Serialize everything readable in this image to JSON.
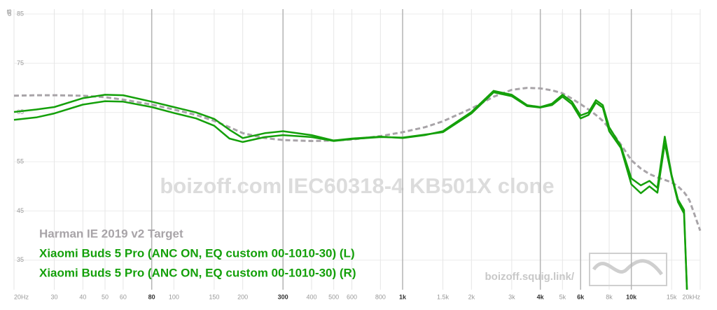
{
  "chart_data": {
    "type": "line",
    "watermark": "boizoff.com IEC60318-4 KB501X clone",
    "site": "boizoff.squig.link/",
    "ylabel": "dB",
    "xscale": "log",
    "grid": true,
    "legend": "bottom-left",
    "xlim": [
      20,
      20000
    ],
    "ylim": [
      29,
      86
    ],
    "xticks": [
      {
        "value": 20,
        "label": "20Hz"
      },
      30,
      40,
      50,
      60,
      80,
      100,
      150,
      200,
      300,
      400,
      500,
      600,
      800,
      {
        "value": 1000,
        "label": "1k"
      },
      {
        "value": 1500,
        "label": "1.5k"
      },
      {
        "value": 2000,
        "label": "2k"
      },
      {
        "value": 3000,
        "label": "3k"
      },
      {
        "value": 4000,
        "label": "4k"
      },
      {
        "value": 5000,
        "label": "5k"
      },
      {
        "value": 6000,
        "label": "6k"
      },
      {
        "value": 8000,
        "label": "8k"
      },
      {
        "value": 10000,
        "label": "10k"
      },
      {
        "value": 15000,
        "label": "15k"
      },
      {
        "value": 20000,
        "label": "20kHz"
      }
    ],
    "emphasized_xticks": [
      80,
      300,
      1000,
      4000,
      6000,
      10000
    ],
    "yticks": [
      35,
      45,
      55,
      65,
      75,
      85
    ],
    "x": [
      20,
      25,
      30,
      40,
      50,
      60,
      80,
      100,
      125,
      150,
      175,
      200,
      250,
      300,
      400,
      500,
      600,
      800,
      1000,
      1250,
      1500,
      2000,
      2500,
      3000,
      3500,
      4000,
      4500,
      5000,
      5500,
      6000,
      6500,
      7000,
      7500,
      8000,
      9000,
      10000,
      11000,
      12000,
      13000,
      14000,
      15000,
      16000,
      17000,
      17500,
      18000,
      20000
    ],
    "series": [
      {
        "name": "Harman IE 2019 v2 Target",
        "color": "#a8a4a8",
        "dashed": true,
        "values": [
          68.4,
          68.5,
          68.5,
          68.4,
          68.1,
          67.6,
          66.6,
          65.6,
          64.5,
          63.3,
          62,
          60.8,
          59.8,
          59.4,
          59.2,
          59.3,
          59.5,
          60.2,
          61,
          62,
          63.2,
          65.8,
          68.2,
          69.6,
          70,
          69.9,
          69.5,
          68.9,
          67.8,
          66.7,
          65.6,
          64.5,
          63.3,
          61.8,
          58.5,
          55.3,
          53.6,
          52.5,
          51.8,
          51.3,
          50.8,
          50,
          48.8,
          48,
          47,
          41
        ]
      },
      {
        "name": "Xiaomi Buds 5 Pro (ANC ON, EQ custom 00-1010-30) (L)",
        "color": "#14a00a",
        "values": [
          65.1,
          65.6,
          66.1,
          67.9,
          68.6,
          68.5,
          67.2,
          66.1,
          65,
          63.7,
          61.5,
          59.8,
          60.8,
          61.2,
          60.4,
          59.3,
          59.7,
          60.1,
          59.8,
          60.4,
          61.2,
          65.1,
          69.4,
          68.6,
          66.5,
          66.1,
          66.8,
          68.6,
          67.2,
          64.4,
          65,
          67.5,
          66.5,
          62,
          58.2,
          51.6,
          50.2,
          51.1,
          49.7,
          60.1,
          52.3,
          47.3,
          45.2,
          29,
          null,
          null
        ]
      },
      {
        "name": "Xiaomi Buds 5 Pro (ANC ON, EQ custom 00-1010-30) (R)",
        "color": "#14a00a",
        "values": [
          63.5,
          64,
          64.8,
          66.6,
          67.3,
          67.2,
          66.1,
          64.9,
          63.8,
          62.3,
          59.7,
          59,
          60,
          60.4,
          60,
          59.2,
          59.6,
          60,
          59.9,
          60.5,
          61,
          64.8,
          69.1,
          68.3,
          66.3,
          66,
          66.5,
          68.2,
          66.7,
          63.8,
          64.5,
          67,
          66,
          61.2,
          57.8,
          50.4,
          48.6,
          50,
          48.7,
          58.7,
          52,
          46.8,
          44.5,
          29,
          null,
          null
        ]
      }
    ]
  }
}
